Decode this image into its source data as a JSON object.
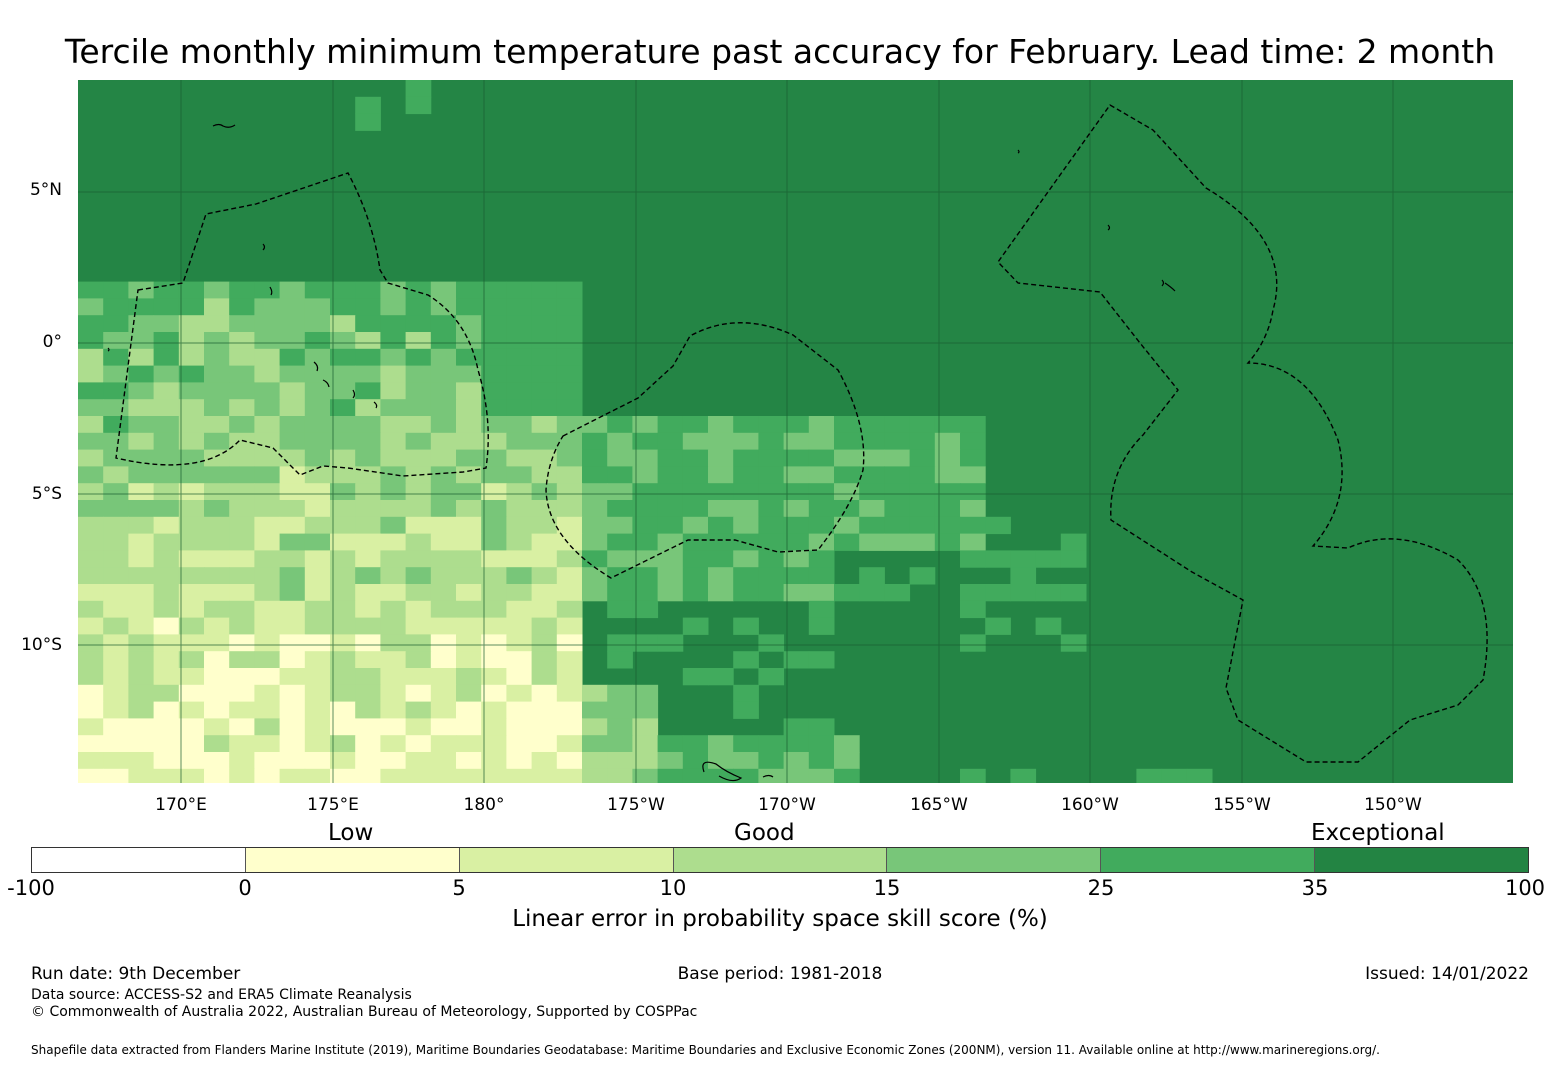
{
  "title": "Tercile monthly minimum temperature past accuracy for February. Lead time: 2 month",
  "map": {
    "lat_labels": [
      "5°N",
      "0°",
      "5°S",
      "10°S"
    ],
    "lon_labels": [
      "170°E",
      "175°E",
      "180°",
      "175°W",
      "170°W",
      "165°W",
      "160°W",
      "155°W",
      "150°W"
    ],
    "background_color": "#248545"
  },
  "legend": {
    "categories": [
      "Low",
      "Good",
      "Exceptional"
    ],
    "ticks": [
      "-100",
      "0",
      "5",
      "10",
      "15",
      "25",
      "35",
      "100"
    ],
    "colors": [
      "#ffffff",
      "#ffffcc",
      "#d9f0a3",
      "#addd8e",
      "#78c679",
      "#41ab5d",
      "#238443"
    ],
    "label": "Linear error in probability space skill score (%)"
  },
  "footer": {
    "run_date": "Run date: 9th December",
    "base_period": "Base period: 1981-2018",
    "issued": "Issued: 14/01/2022",
    "data_source": "Data source: ACCESS-S2 and ERA5 Climate Reanalysis",
    "copyright": "© Commonwealth of Australia 2022, Australian Bureau of Meteorology, Supported by COSPPac",
    "shapefile": "Shapefile data extracted from Flanders Marine Institute (2019), Maritime Boundaries Geodatabase: Maritime Boundaries and Exclusive Economic Zones (200NM), version 11. Available online at http://www.marineregions.org/."
  }
}
